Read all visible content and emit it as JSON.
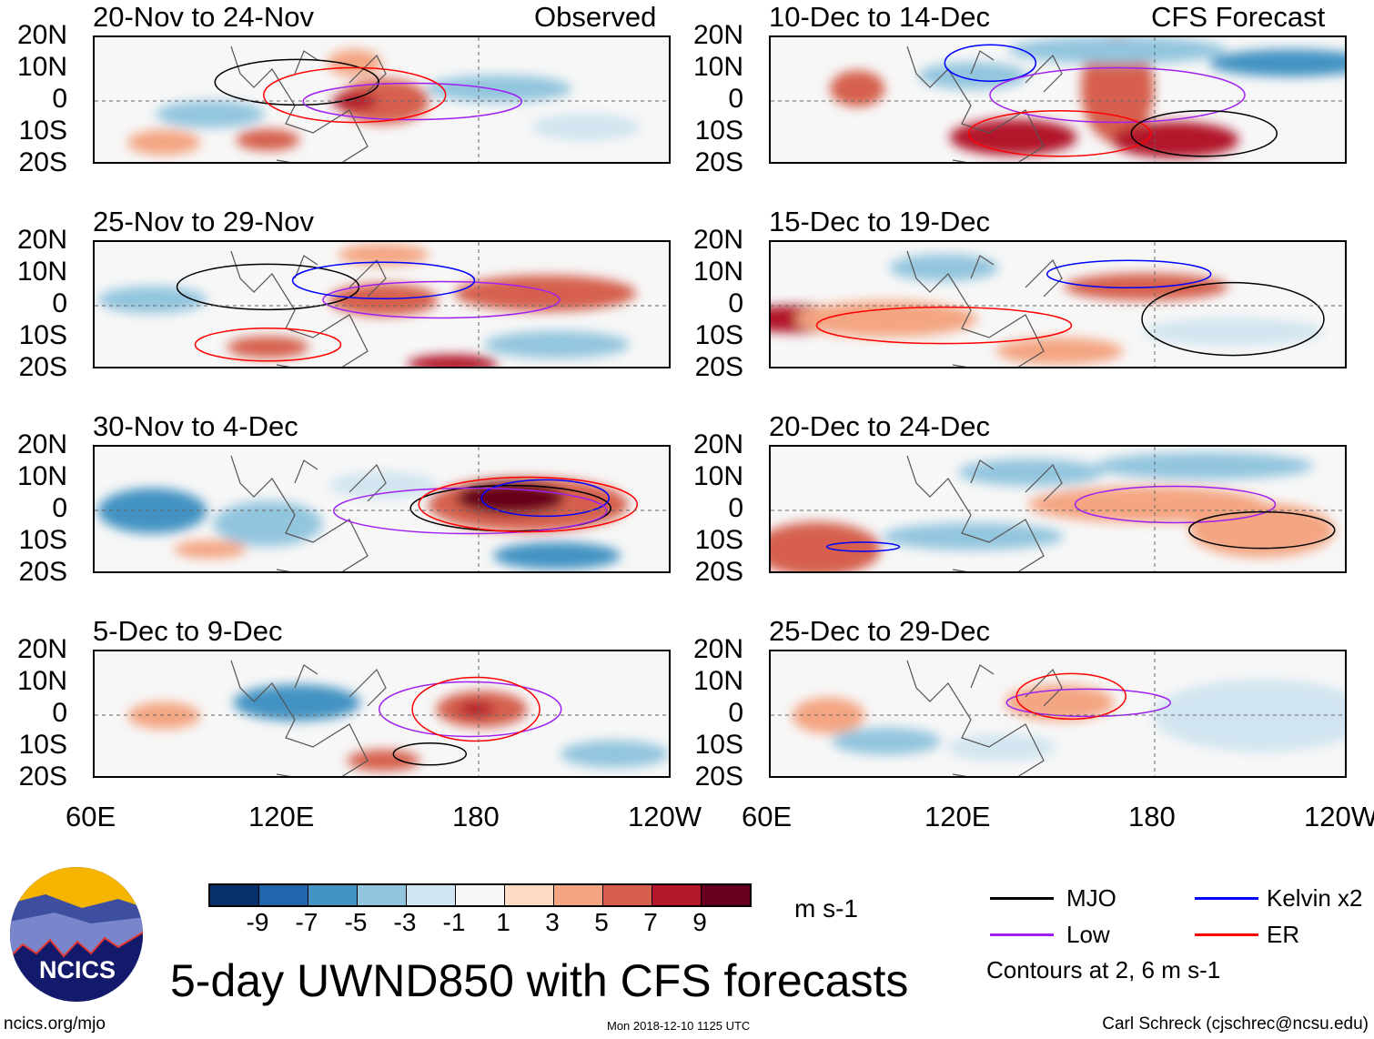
{
  "headers": {
    "observed": "Observed",
    "forecast": "CFS Forecast"
  },
  "panels": [
    {
      "title": "20-Nov to 24-Nov",
      "col": 0,
      "row": 0
    },
    {
      "title": "25-Nov to 29-Nov",
      "col": 0,
      "row": 1
    },
    {
      "title": "30-Nov to 4-Dec",
      "col": 0,
      "row": 2
    },
    {
      "title": "5-Dec to 9-Dec",
      "col": 0,
      "row": 3
    },
    {
      "title": "10-Dec to 14-Dec",
      "col": 1,
      "row": 0
    },
    {
      "title": "15-Dec to 19-Dec",
      "col": 1,
      "row": 1
    },
    {
      "title": "20-Dec to 24-Dec",
      "col": 1,
      "row": 2
    },
    {
      "title": "25-Dec to 29-Dec",
      "col": 1,
      "row": 3
    }
  ],
  "lat_labels": [
    "20N",
    "10N",
    "0",
    "10S",
    "20S"
  ],
  "lon_labels": [
    "60E",
    "120E",
    "180",
    "120W"
  ],
  "colorbar": {
    "colors": [
      "#08306b",
      "#2166ac",
      "#4393c3",
      "#92c5de",
      "#d1e5f0",
      "#f7f7f7",
      "#fddbc7",
      "#f4a582",
      "#d6604d",
      "#b2182b",
      "#67001f"
    ],
    "labels": [
      "-9",
      "-7",
      "-5",
      "-3",
      "-1",
      "1",
      "3",
      "5",
      "7",
      "9"
    ],
    "units": "m s-1"
  },
  "legend": {
    "items": [
      {
        "label": "MJO",
        "color": "#000000"
      },
      {
        "label": "Kelvin x2",
        "color": "#0000ff"
      },
      {
        "label": "Low",
        "color": "#a020f0"
      },
      {
        "label": "ER",
        "color": "#ff0000"
      }
    ],
    "contours_note": "Contours at 2, 6 m s-1"
  },
  "logo_text": "NCICS",
  "title": "5-day UWND850 with CFS forecasts",
  "footer": {
    "left": "ncics.org/mjo",
    "center": "Mon 2018-12-10 1125 UTC",
    "right": "Carl Schreck (cjschrec@ncsu.edu)"
  }
}
